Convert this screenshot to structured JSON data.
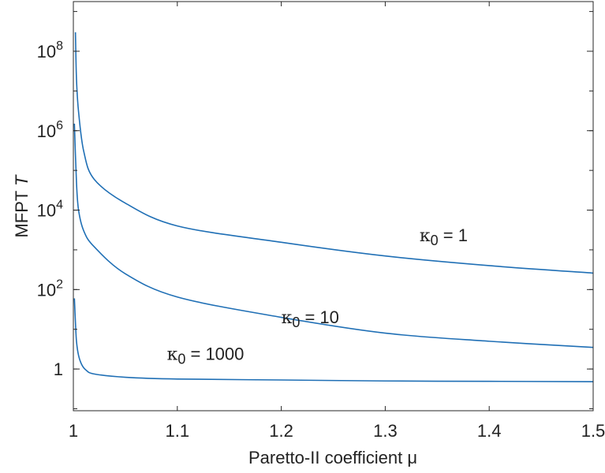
{
  "chart_data": {
    "type": "line",
    "xlabel": "Paretto-II coefficient μ",
    "ylabel": "MFPT T",
    "ylabel_main": "MFPT ",
    "ylabel_italic": "T",
    "xlim": [
      1.0,
      1.5
    ],
    "ylim_log10": [
      -1.05,
      9.25
    ],
    "yscale": "log",
    "grid": false,
    "x_ticks": [
      {
        "value": 1.0,
        "label": "1"
      },
      {
        "value": 1.1,
        "label": "1.1"
      },
      {
        "value": 1.2,
        "label": "1.2"
      },
      {
        "value": 1.3,
        "label": "1.3"
      },
      {
        "value": 1.4,
        "label": "1.4"
      },
      {
        "value": 1.5,
        "label": "1.5"
      }
    ],
    "y_ticks": [
      {
        "log10": 0,
        "label": "1",
        "base": "1",
        "exp": ""
      },
      {
        "log10": 2,
        "label": "10^2",
        "base": "10",
        "exp": "2"
      },
      {
        "log10": 4,
        "label": "10^4",
        "base": "10",
        "exp": "4"
      },
      {
        "log10": 6,
        "label": "10^6",
        "base": "10",
        "exp": "6"
      },
      {
        "log10": 8,
        "label": "10^8",
        "base": "10",
        "exp": "8"
      }
    ],
    "series": [
      {
        "label_text": "κ0 = 1",
        "sym": "κ",
        "sub": "0",
        "rest": " = 1",
        "label_at": {
          "x": 1.333,
          "y_log10": 3.22
        },
        "x": [
          1.002,
          1.003,
          1.005,
          1.01,
          1.02,
          1.05,
          1.1,
          1.2,
          1.3,
          1.4,
          1.5
        ],
        "y": [
          300000000,
          20000000,
          3000000,
          300000,
          60000,
          15000,
          4000,
          1550,
          700,
          400,
          260
        ]
      },
      {
        "label_text": "κ0 = 10",
        "sym": "κ",
        "sub": "0",
        "rest": " = 10",
        "label_at": {
          "x": 1.2,
          "y_log10": 1.15
        },
        "x": [
          1.001,
          1.003,
          1.005,
          1.01,
          1.02,
          1.05,
          1.1,
          1.2,
          1.3,
          1.4,
          1.5
        ],
        "y": [
          1500000,
          50000,
          10000,
          3000,
          1200,
          250,
          65,
          20,
          8,
          5,
          3.5
        ]
      },
      {
        "label_text": "κ0 = 1000",
        "sym": "κ",
        "sub": "0",
        "rest": " = 1000",
        "label_at": {
          "x": 1.09,
          "y_log10": 0.23
        },
        "x": [
          1.001,
          1.002,
          1.003,
          1.005,
          1.008,
          1.012,
          1.02,
          1.05,
          1.1,
          1.2,
          1.3,
          1.4,
          1.5
        ],
        "y": [
          60,
          15,
          5,
          2.2,
          1.3,
          0.95,
          0.75,
          0.62,
          0.56,
          0.53,
          0.5,
          0.49,
          0.48
        ]
      }
    ]
  }
}
